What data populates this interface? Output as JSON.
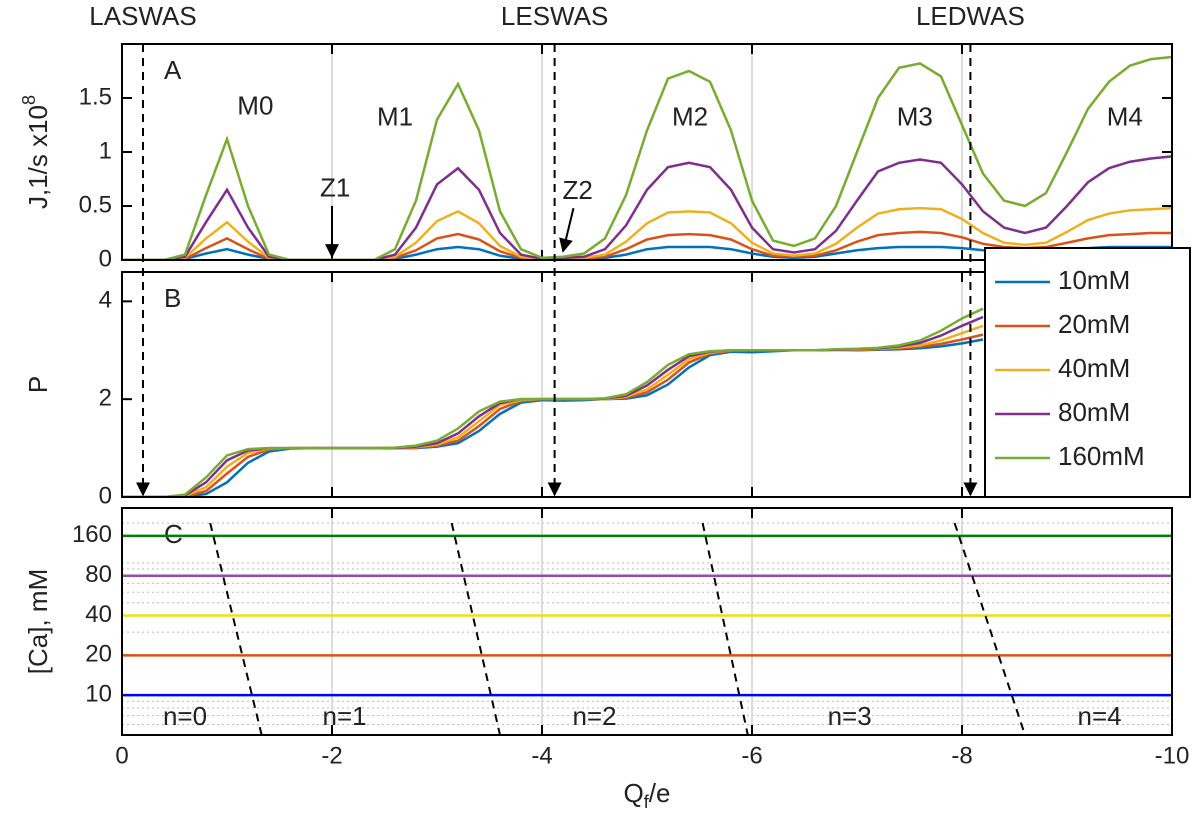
{
  "chart_data": [
    {
      "type": "line",
      "panel_label": "A",
      "ylabel": "J,1/s x10",
      "ylabel_sup": "8",
      "x": [
        0,
        -0.2,
        -0.4,
        -0.6,
        -0.8,
        -1,
        -1.2,
        -1.4,
        -1.6,
        -1.8,
        -2,
        -2.2,
        -2.4,
        -2.6,
        -2.8,
        -3,
        -3.2,
        -3.4,
        -3.6,
        -3.8,
        -4,
        -4.2,
        -4.4,
        -4.6,
        -4.8,
        -5,
        -5.2,
        -5.4,
        -5.6,
        -5.8,
        -6,
        -6.2,
        -6.4,
        -6.6,
        -6.8,
        -7,
        -7.2,
        -7.4,
        -7.6,
        -7.8,
        -8,
        -8.2,
        -8.4,
        -8.6,
        -8.8,
        -9,
        -9.2,
        -9.4,
        -9.6,
        -9.8,
        -10
      ],
      "xlim": [
        0,
        -10
      ],
      "xticks": [
        0,
        -2,
        -4,
        -6,
        -8,
        -10
      ],
      "show_xtick_labels": false,
      "ylim": [
        0,
        2
      ],
      "yticks": [
        0,
        0.5,
        1,
        1.5
      ],
      "grid": "x",
      "series": [
        {
          "color": "#0072bd",
          "values": [
            0,
            0,
            0,
            0.01,
            0.06,
            0.1,
            0.05,
            0.01,
            0,
            0,
            0,
            0,
            0,
            0.01,
            0.05,
            0.1,
            0.12,
            0.1,
            0.04,
            0.01,
            0,
            0,
            0.01,
            0.02,
            0.05,
            0.1,
            0.12,
            0.12,
            0.12,
            0.1,
            0.06,
            0.03,
            0.02,
            0.03,
            0.06,
            0.09,
            0.11,
            0.12,
            0.12,
            0.12,
            0.11,
            0.09,
            0.08,
            0.08,
            0.09,
            0.1,
            0.11,
            0.12,
            0.12,
            0.12,
            0.12
          ]
        },
        {
          "color": "#d95319",
          "values": [
            0,
            0,
            0,
            0.01,
            0.11,
            0.2,
            0.1,
            0.01,
            0,
            0,
            0,
            0,
            0,
            0.02,
            0.09,
            0.2,
            0.24,
            0.19,
            0.08,
            0.02,
            0.01,
            0.01,
            0.01,
            0.03,
            0.1,
            0.19,
            0.23,
            0.24,
            0.23,
            0.19,
            0.1,
            0.04,
            0.03,
            0.04,
            0.09,
            0.17,
            0.23,
            0.25,
            0.26,
            0.25,
            0.21,
            0.15,
            0.12,
            0.11,
            0.12,
            0.16,
            0.2,
            0.23,
            0.24,
            0.25,
            0.25
          ]
        },
        {
          "color": "#edb120",
          "values": [
            0,
            0,
            0,
            0.02,
            0.2,
            0.35,
            0.17,
            0.02,
            0,
            0,
            0,
            0,
            0,
            0.03,
            0.16,
            0.36,
            0.45,
            0.34,
            0.13,
            0.03,
            0.01,
            0.01,
            0.02,
            0.05,
            0.17,
            0.34,
            0.44,
            0.45,
            0.44,
            0.34,
            0.16,
            0.06,
            0.04,
            0.06,
            0.15,
            0.3,
            0.43,
            0.47,
            0.48,
            0.47,
            0.38,
            0.25,
            0.16,
            0.14,
            0.16,
            0.26,
            0.37,
            0.43,
            0.46,
            0.47,
            0.48
          ]
        },
        {
          "color": "#7e2f8e",
          "values": [
            0,
            0,
            0,
            0.03,
            0.35,
            0.65,
            0.3,
            0.03,
            0,
            0,
            0,
            0,
            0,
            0.05,
            0.3,
            0.7,
            0.85,
            0.65,
            0.25,
            0.05,
            0.01,
            0.02,
            0.03,
            0.1,
            0.32,
            0.65,
            0.86,
            0.9,
            0.86,
            0.65,
            0.3,
            0.1,
            0.07,
            0.1,
            0.27,
            0.55,
            0.82,
            0.9,
            0.93,
            0.9,
            0.7,
            0.45,
            0.3,
            0.25,
            0.3,
            0.5,
            0.72,
            0.85,
            0.91,
            0.94,
            0.96
          ]
        },
        {
          "color": "#77ac30",
          "values": [
            0,
            0,
            0,
            0.05,
            0.6,
            1.12,
            0.5,
            0.05,
            0,
            0,
            0,
            0,
            0,
            0.1,
            0.55,
            1.3,
            1.63,
            1.2,
            0.45,
            0.1,
            0.02,
            0.03,
            0.06,
            0.2,
            0.6,
            1.2,
            1.68,
            1.75,
            1.65,
            1.2,
            0.55,
            0.18,
            0.13,
            0.2,
            0.5,
            1,
            1.5,
            1.78,
            1.82,
            1.7,
            1.25,
            0.8,
            0.55,
            0.5,
            0.62,
            1,
            1.4,
            1.65,
            1.8,
            1.86,
            1.88
          ]
        }
      ],
      "annotations": [
        {
          "text": "M0",
          "x": -1.27,
          "y": 1.41
        },
        {
          "text": "M1",
          "x": -2.6,
          "y": 1.31
        },
        {
          "text": "M2",
          "x": -5.41,
          "y": 1.31
        },
        {
          "text": "M3",
          "x": -7.55,
          "y": 1.31
        },
        {
          "text": "M4",
          "x": -9.55,
          "y": 1.31
        },
        {
          "text": "Z1",
          "x": -2.03,
          "y": 0.65,
          "arrow_from": [
            -2,
            0.5
          ],
          "arrow_to": [
            -2,
            0.03
          ]
        },
        {
          "text": "Z2",
          "x": -4.34,
          "y": 0.63,
          "arrow_from": [
            -4.3,
            0.48
          ],
          "arrow_to": [
            -4.2,
            0.08
          ]
        }
      ]
    },
    {
      "type": "line",
      "panel_label": "B",
      "ylabel": "P",
      "x": [
        0,
        -0.2,
        -0.4,
        -0.6,
        -0.8,
        -1,
        -1.2,
        -1.4,
        -1.6,
        -1.8,
        -2,
        -2.2,
        -2.4,
        -2.6,
        -2.8,
        -3,
        -3.2,
        -3.4,
        -3.6,
        -3.8,
        -4,
        -4.2,
        -4.4,
        -4.6,
        -4.8,
        -5,
        -5.2,
        -5.4,
        -5.6,
        -5.8,
        -6,
        -6.2,
        -6.4,
        -6.6,
        -6.8,
        -7,
        -7.2,
        -7.4,
        -7.6,
        -7.8,
        -8,
        -8.2
      ],
      "xlim": [
        0,
        -10
      ],
      "xticks": [
        0,
        -2,
        -4,
        -6,
        -8,
        -10
      ],
      "show_xtick_labels": false,
      "ylim": [
        0,
        4.6
      ],
      "yticks": [
        0,
        2,
        4
      ],
      "grid": "x",
      "legend": "east",
      "series": [
        {
          "name": "10mM",
          "color": "#0072bd",
          "values": [
            0,
            0,
            0,
            0.01,
            0.06,
            0.3,
            0.7,
            0.93,
            0.99,
            1,
            1,
            1,
            1,
            1,
            1,
            1.03,
            1.1,
            1.35,
            1.7,
            1.93,
            1.98,
            1.97,
            1.98,
            2,
            2.01,
            2.08,
            2.3,
            2.65,
            2.9,
            2.97,
            2.96,
            2.98,
            3,
            3,
            3,
            3,
            3.01,
            3.02,
            3.04,
            3.08,
            3.14,
            3.22
          ]
        },
        {
          "name": "20mM",
          "color": "#d95319",
          "values": [
            0,
            0,
            0,
            0.01,
            0.12,
            0.48,
            0.82,
            0.97,
            1,
            1,
            1,
            1,
            1,
            1,
            1.01,
            1.05,
            1.15,
            1.45,
            1.8,
            1.96,
            2,
            2,
            2,
            2,
            2.03,
            2.14,
            2.4,
            2.75,
            2.93,
            2.99,
            3,
            3,
            3,
            3,
            3,
            3,
            3.02,
            3.04,
            3.07,
            3.13,
            3.22,
            3.32
          ]
        },
        {
          "name": "40mM",
          "color": "#edb120",
          "values": [
            0,
            0,
            0,
            0.02,
            0.2,
            0.62,
            0.9,
            0.99,
            1,
            1,
            1,
            1,
            1,
            1,
            1.02,
            1.07,
            1.22,
            1.55,
            1.88,
            1.98,
            2,
            2,
            2,
            2,
            2.05,
            2.2,
            2.5,
            2.82,
            2.95,
            3,
            3,
            3,
            3,
            3,
            3,
            3.01,
            3.03,
            3.06,
            3.1,
            3.2,
            3.35,
            3.5
          ]
        },
        {
          "name": "80mM",
          "color": "#7e2f8e",
          "values": [
            0,
            0,
            0,
            0.03,
            0.3,
            0.75,
            0.95,
            1,
            1,
            1,
            1,
            1,
            1,
            1,
            1.03,
            1.1,
            1.3,
            1.65,
            1.92,
            2,
            2,
            2,
            2,
            2.01,
            2.07,
            2.28,
            2.6,
            2.88,
            2.97,
            3,
            3,
            3,
            3,
            3,
            3.01,
            3.02,
            3.04,
            3.08,
            3.15,
            3.3,
            3.5,
            3.68
          ]
        },
        {
          "name": "160mM",
          "color": "#77ac30",
          "values": [
            0,
            0,
            0,
            0.05,
            0.4,
            0.85,
            0.98,
            1,
            1,
            1,
            1,
            1,
            1,
            1.01,
            1.05,
            1.15,
            1.4,
            1.75,
            1.95,
            2,
            2,
            2,
            2,
            2.02,
            2.1,
            2.35,
            2.7,
            2.92,
            2.98,
            3,
            3,
            3,
            3,
            3,
            3.02,
            3.03,
            3.05,
            3.1,
            3.2,
            3.4,
            3.65,
            3.85
          ]
        }
      ]
    },
    {
      "type": "hline",
      "panel_label": "C",
      "ylabel": "[Ca], mM",
      "xlabel": "Q",
      "xlabel_sub": "f",
      "xlabel_tail": "/e",
      "xlim": [
        0,
        -10
      ],
      "xticks": [
        0,
        -2,
        -4,
        -6,
        -8,
        -10
      ],
      "show_xtick_labels": true,
      "log_y": true,
      "ylim": [
        5,
        260
      ],
      "yticks": [
        10,
        20,
        40,
        80,
        160
      ],
      "grid": "x",
      "minor_grid": true,
      "lines": [
        {
          "value": 10,
          "color": "#0000ff"
        },
        {
          "value": 20,
          "color": "#d95319"
        },
        {
          "value": 40,
          "color": "#f0e010"
        },
        {
          "value": 80,
          "color": "#9a4aa8"
        },
        {
          "value": 160,
          "color": "#008000"
        }
      ],
      "boundaries": [
        {
          "x": [
            -0.84,
            -1.33
          ],
          "y": [
            200,
            5
          ]
        },
        {
          "x": [
            -3.14,
            -3.6
          ],
          "y": [
            200,
            5
          ]
        },
        {
          "x": [
            -5.53,
            -5.96
          ],
          "y": [
            200,
            5
          ]
        },
        {
          "x": [
            -7.93,
            -8.6
          ],
          "y": [
            200,
            5
          ]
        }
      ],
      "regions": [
        {
          "text": "n=0",
          "x": -0.6,
          "y": 6.7
        },
        {
          "text": "n=1",
          "x": -2.12,
          "y": 6.7
        },
        {
          "text": "n=2",
          "x": -4.5,
          "y": 6.7
        },
        {
          "text": "n=3",
          "x": -6.93,
          "y": 6.7
        },
        {
          "text": "n=4",
          "x": -9.31,
          "y": 6.7
        }
      ]
    }
  ],
  "markers": [
    {
      "label": "LASWAS",
      "x": -0.2
    },
    {
      "label": "LESWAS",
      "x": -4.12
    },
    {
      "label": "LEDWAS",
      "x": -8.08
    }
  ]
}
